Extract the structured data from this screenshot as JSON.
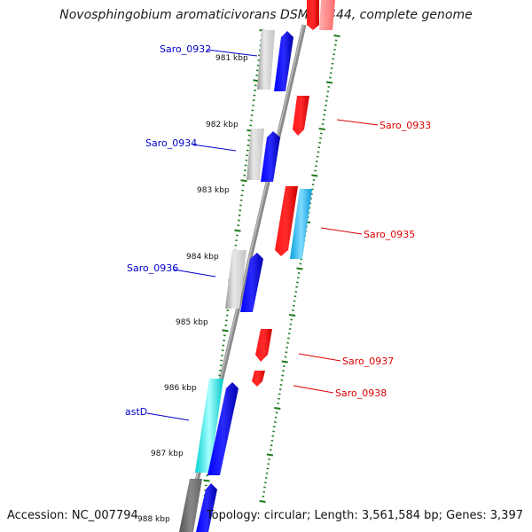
{
  "header": {
    "title": "Novosphingobium aromaticivorans DSM 12444, complete genome"
  },
  "footer": {
    "accession": "Accession: NC_007794",
    "topology": "Topology: circular; Length: 3,561,584 bp; Genes: 3,397"
  },
  "axis": {
    "ticks": [
      {
        "label": "981 kbp"
      },
      {
        "label": "982 kbp"
      },
      {
        "label": "983 kbp"
      },
      {
        "label": "984 kbp"
      },
      {
        "label": "985 kbp"
      },
      {
        "label": "986 kbp"
      },
      {
        "label": "987 kbp"
      },
      {
        "label": "988 kbp"
      }
    ]
  },
  "genes": [
    {
      "label": "Saro_0932",
      "strand": "left",
      "color": "#0000cc"
    },
    {
      "label": "Saro_0933",
      "strand": "right",
      "color": "#dd0000"
    },
    {
      "label": "Saro_0934",
      "strand": "left",
      "color": "#0000cc"
    },
    {
      "label": "Saro_0935",
      "strand": "right",
      "color": "#dd0000"
    },
    {
      "label": "Saro_0936",
      "strand": "left",
      "color": "#0000cc"
    },
    {
      "label": "Saro_0937",
      "strand": "right",
      "color": "#dd0000"
    },
    {
      "label": "Saro_0938",
      "strand": "right",
      "color": "#dd0000"
    },
    {
      "label": "astD",
      "strand": "left",
      "color": "#0000cc"
    }
  ],
  "colors": {
    "backbone": "#888888",
    "tick_green": "#1a7a1a",
    "forward": "#ff0000",
    "reverse": "#0000ff",
    "gray": "#bbbbbb",
    "cyan": "#00e0e0",
    "skyblue": "#1ab0e8"
  }
}
